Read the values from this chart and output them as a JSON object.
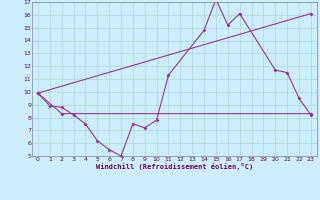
{
  "xlabel": "Windchill (Refroidissement éolien,°C)",
  "bg_color": "#cceeff",
  "grid_color": "#aaddcc",
  "line_color": "#993399",
  "xlim": [
    -0.5,
    23.5
  ],
  "ylim": [
    5,
    17
  ],
  "xticks": [
    0,
    1,
    2,
    3,
    4,
    5,
    6,
    7,
    8,
    9,
    10,
    11,
    12,
    13,
    14,
    15,
    16,
    17,
    18,
    19,
    20,
    21,
    22,
    23
  ],
  "yticks": [
    5,
    6,
    7,
    8,
    9,
    10,
    11,
    12,
    13,
    14,
    15,
    16,
    17
  ],
  "line1_x": [
    0,
    1,
    2,
    3,
    4,
    5,
    6,
    7,
    8,
    9,
    10,
    11,
    14,
    15,
    16,
    17,
    20,
    21,
    22,
    23
  ],
  "line1_y": [
    9.9,
    8.9,
    8.8,
    8.2,
    7.5,
    6.2,
    5.5,
    5.0,
    7.5,
    7.2,
    7.8,
    11.3,
    14.8,
    17.2,
    15.2,
    16.1,
    11.7,
    11.5,
    9.5,
    8.2
  ],
  "line2_x": [
    0,
    2,
    23
  ],
  "line2_y": [
    9.9,
    8.3,
    8.3
  ],
  "line3_x": [
    0,
    23
  ],
  "line3_y": [
    9.9,
    16.1
  ]
}
